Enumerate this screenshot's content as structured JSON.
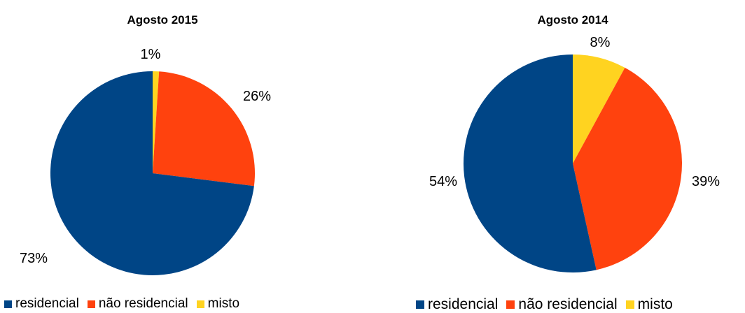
{
  "colors": {
    "residencial": "#004586",
    "nao_residencial": "#ff420e",
    "misto": "#ffd320"
  },
  "chart_data": [
    {
      "type": "pie",
      "title": "Agosto 2015",
      "categories": [
        "residencial",
        "não residencial",
        "misto"
      ],
      "values": [
        73,
        26,
        1
      ],
      "labels": [
        "73%",
        "26%",
        "1%"
      ],
      "legend": "bottom"
    },
    {
      "type": "pie",
      "title": "Agosto 2014",
      "categories": [
        "residencial",
        "não residencial",
        "misto"
      ],
      "values": [
        54,
        39,
        8
      ],
      "labels": [
        "54%",
        "39%",
        "8%"
      ],
      "legend": "bottom"
    }
  ]
}
